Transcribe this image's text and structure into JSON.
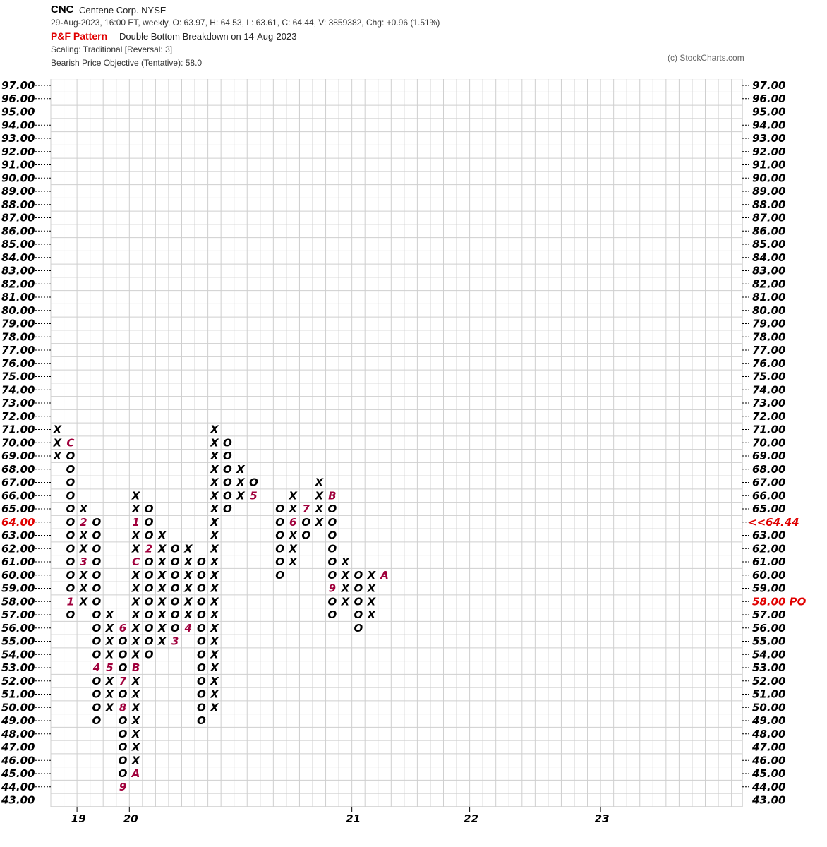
{
  "header": {
    "symbol": "CNC",
    "company": "Centene Corp. NYSE",
    "ohlc_line": "29-Aug-2023, 16:00 ET, weekly, O: 63.97, H: 64.53, L: 63.61, C: 64.44, V: 3859382, Chg: +0.96 (1.51%)",
    "pattern_label": "P&F Pattern",
    "pattern_text": "Double Bottom Breakdown on 14-Aug-2023",
    "scaling": "Scaling: Traditional [Reversal: 3]",
    "objective": "Bearish Price Objective (Tentative): 58.0",
    "copyright": "(c) StockCharts.com"
  },
  "chart_data": {
    "type": "point-and-figure",
    "box_size": 1,
    "reversal": 3,
    "ylim": [
      43,
      97
    ],
    "y_ticks": [
      "97.00",
      "96.00",
      "95.00",
      "94.00",
      "93.00",
      "92.00",
      "91.00",
      "90.00",
      "89.00",
      "88.00",
      "87.00",
      "86.00",
      "85.00",
      "84.00",
      "83.00",
      "82.00",
      "81.00",
      "80.00",
      "79.00",
      "78.00",
      "77.00",
      "76.00",
      "75.00",
      "74.00",
      "73.00",
      "72.00",
      "71.00",
      "70.00",
      "69.00",
      "68.00",
      "67.00",
      "66.00",
      "65.00",
      "64.00",
      "63.00",
      "62.00",
      "61.00",
      "60.00",
      "59.00",
      "58.00",
      "57.00",
      "56.00",
      "55.00",
      "54.00",
      "53.00",
      "52.00",
      "51.00",
      "50.00",
      "49.00",
      "48.00",
      "47.00",
      "46.00",
      "45.00",
      "44.00",
      "43.00"
    ],
    "highlight_left": "64.00",
    "highlight_right": [
      "58.00 PO",
      "<<64.44"
    ],
    "last_price": 64.44,
    "price_objective": 58.0,
    "x_labels": [
      {
        "label": "19",
        "column": 2
      },
      {
        "label": "20",
        "column": 6
      },
      {
        "label": "21",
        "column": 23
      },
      {
        "label": "22",
        "column": 32
      },
      {
        "label": "23",
        "column": 42
      }
    ],
    "columns": [
      {
        "t": "X",
        "from": 69,
        "to": 71
      },
      {
        "t": "O",
        "from": 57,
        "to": 70,
        "m": {
          "70": "C",
          "58": "1"
        }
      },
      {
        "t": "X",
        "from": 58,
        "to": 65,
        "m": {
          "64": "2",
          "61": "3"
        }
      },
      {
        "t": "O",
        "from": 49,
        "to": 64,
        "m": {
          "53": "4"
        }
      },
      {
        "t": "X",
        "from": 50,
        "to": 57,
        "m": {
          "53": "5"
        }
      },
      {
        "t": "O",
        "from": 44,
        "to": 56,
        "m": {
          "56": "6",
          "52": "7",
          "50": "8",
          "44": "9"
        }
      },
      {
        "t": "X",
        "from": 45,
        "to": 66,
        "m": {
          "53": "B",
          "45": "A",
          "61": "C",
          "64": "1"
        }
      },
      {
        "t": "O",
        "from": 54,
        "to": 65,
        "m": {
          "62": "2"
        }
      },
      {
        "t": "X",
        "from": 55,
        "to": 63
      },
      {
        "t": "O",
        "from": 55,
        "to": 62,
        "m": {
          "55": "3"
        }
      },
      {
        "t": "X",
        "from": 56,
        "to": 62,
        "m": {
          "56": "4"
        }
      },
      {
        "t": "O",
        "from": 49,
        "to": 61
      },
      {
        "t": "X",
        "from": 50,
        "to": 71
      },
      {
        "t": "O",
        "from": 65,
        "to": 70
      },
      {
        "t": "X",
        "from": 66,
        "to": 68
      },
      {
        "t": "O",
        "from": 66,
        "to": 67,
        "m": {
          "66": "5"
        }
      },
      {
        "t": "X",
        "from": null,
        "to": null
      },
      {
        "t": "O",
        "from": 60,
        "to": 65
      },
      {
        "t": "X",
        "from": 61,
        "to": 66,
        "m": {
          "64": "6"
        }
      },
      {
        "t": "O",
        "from": 63,
        "to": 65,
        "m": {
          "65": "7"
        }
      },
      {
        "t": "X",
        "from": 64,
        "to": 67
      },
      {
        "t": "O",
        "from": 57,
        "to": 66,
        "m": {
          "66": "B",
          "59": "9"
        }
      },
      {
        "t": "X",
        "from": 58,
        "to": 61
      },
      {
        "t": "O",
        "from": 56,
        "to": 60
      },
      {
        "t": "X",
        "from": 57,
        "to": 60
      },
      {
        "t": "O",
        "from": 60,
        "to": 60,
        "m": {
          "60": "A"
        }
      }
    ]
  }
}
